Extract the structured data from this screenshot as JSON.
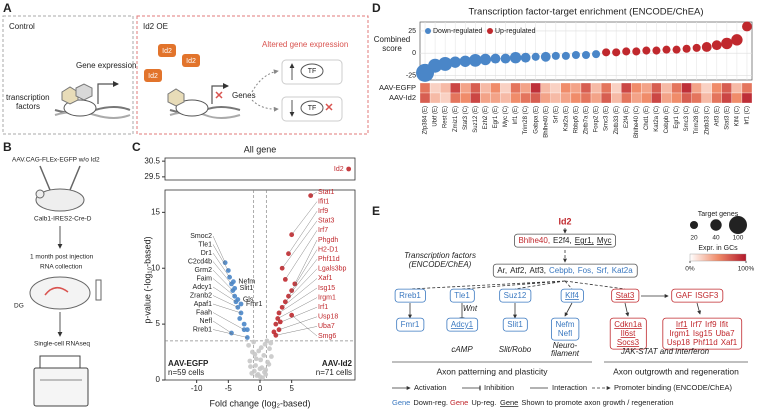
{
  "panel_labels": [
    "A",
    "B",
    "C",
    "D",
    "E"
  ],
  "panel_a": {
    "control": {
      "title": "Control",
      "gene_expression": "Gene expression",
      "tf_label": [
        "transcription",
        "factors"
      ]
    },
    "id2oe": {
      "title": "Id2 OE",
      "id2": "Id2",
      "altered": "Altered gene expression",
      "genes": "Genes",
      "tf": "TF"
    }
  },
  "panel_b": {
    "aav": "AAV.CAG-FLEx-EGFP w/o Id2",
    "mouse_line": "Calb1-IRES2-Cre-D",
    "timing": "1 month post injection",
    "rna": "RNA collection",
    "region": "DG",
    "method": "Single-cell RNAseq"
  },
  "chart_data": [
    {
      "type": "scatter",
      "title": "All gene",
      "x_label": "Fold change (log₂-based)",
      "y_label": "p-value (-log₁₀-based)",
      "xlim": [
        -15,
        15
      ],
      "xticks": [
        -10,
        -5,
        0,
        5
      ],
      "ylim": [
        0,
        17
      ],
      "yticks": [
        0,
        5,
        10,
        15
      ],
      "y_break": {
        "ylim": [
          29.3,
          30.7
        ],
        "yticks": [
          29.5,
          30.5
        ]
      },
      "fc_threshold": 1,
      "p_threshold": 3.5,
      "annotations": {
        "left": "AAV-EGFP",
        "left_n": "n=59 cells",
        "right": "AAV-Id2",
        "right_n": "n=71 cells"
      },
      "series": [
        {
          "color": "#c8c8c8",
          "x": [
            -1.5,
            -1.2,
            -0.9,
            -0.6,
            -0.3,
            0,
            0.3,
            0.6,
            0.9,
            1.2,
            1.5,
            -1.8,
            -1,
            -0.5,
            0.2,
            0.8,
            1.4,
            1.8,
            -1.3,
            -0.7,
            0.1,
            0.7,
            1.1,
            -0.2,
            0.4,
            -1.6,
            1.7,
            -0.8,
            0.9,
            0
          ],
          "values": [
            1.2,
            2.5,
            0.8,
            1.9,
            0.5,
            0.3,
            1.1,
            2.2,
            0.9,
            1.6,
            2.8,
            3.1,
            3.4,
            0.4,
            2.9,
            3.2,
            1.4,
            2.1,
            0.6,
            1.3,
            1.8,
            0.7,
            3.5,
            2.6,
            0.2,
            1.7,
            3.3,
            2.3,
            0.5,
            1.0
          ]
        },
        {
          "color": "#4a86c8",
          "x": [
            -5.5,
            -5,
            -4.8,
            -4.5,
            -4.3,
            -4,
            -3.8,
            -3.5,
            -3,
            -2.5,
            -4.5,
            -2,
            -4.2,
            -4,
            -3.5,
            -3,
            -2.5,
            -3.2,
            -2
          ],
          "values": [
            10.5,
            9.8,
            9.2,
            8.6,
            8,
            7.5,
            7,
            6.5,
            6,
            4.5,
            4.2,
            3.8,
            8.8,
            8.2,
            7.2,
            6.8,
            5,
            5.5,
            4.5
          ],
          "labels": [
            "Smoc2",
            "Tle1",
            "Dr1",
            "C2cd4b",
            "Grm2",
            "Faim",
            "Adcy1",
            "Zranb2",
            "Apaf1",
            "Faah",
            "Nefl",
            "Rreb1",
            "Nefm",
            "Slit1",
            "Gls",
            "Fmr1",
            null,
            null,
            null
          ]
        },
        {
          "color": "#c0282d",
          "x": [
            8,
            5,
            4.5,
            3.5,
            4,
            5.5,
            5,
            4.5,
            4,
            3.5,
            3,
            2.8,
            2.5,
            3,
            2.5,
            5,
            14,
            2.2,
            3.2
          ],
          "values": [
            16.5,
            13,
            11.3,
            10,
            9,
            8.6,
            8,
            7.5,
            7,
            6.5,
            6,
            5.5,
            5,
            4.5,
            4,
            5.8,
            30,
            4.3,
            5.2
          ],
          "labels": [
            "Stat1",
            "Ifit1",
            "Irf9",
            "Stat3",
            "Irf7",
            "Phgdh",
            "H2-D1",
            "Phf11d",
            "Lgals3bp",
            "Xaf1",
            "Isg15",
            "Irgm1",
            "Irf1",
            "Usp18",
            "Uba7",
            "Smg6",
            "Id2",
            null,
            null
          ]
        }
      ]
    },
    {
      "type": "bubble",
      "title": "Transcription factor-target enrichment (ENCODE/ChEA)",
      "y_label": [
        "Combined",
        "score"
      ],
      "ylim": [
        -30,
        35
      ],
      "yticks": [
        -25,
        0,
        25
      ],
      "categories": [
        "Zfp384 (E)",
        "Ubtf (E)",
        "Rest (E)",
        "Zmiz1 (E)",
        "Stat3 (C)",
        "Suz12 (E)",
        "Ezh2 (E)",
        "Egr1 (E)",
        "Myc (C)",
        "Irf1 (E)",
        "Trim28 (C)",
        "Gabpa (E)",
        "Bhlhe40 (E)",
        "Srf (E)",
        "Kat2a (E)",
        "Rbbp5 (E)",
        "Zbtb7a (E)",
        "Foxp2 (E)",
        "Smc3 (E)",
        "Zbtb33 (E)",
        "E2f4 (E)",
        "Bhlhe40 (C)",
        "Chd1 (E)",
        "Kat2a (C)",
        "Cebpb (E)",
        "Egr1 (C)",
        "Smc3 (C)",
        "Trim28 (E)",
        "Zbtb33 (C)",
        "Atf3 (E)",
        "Stat3 (E)",
        "Klf4 (C)",
        "Irf1 (C)"
      ],
      "series": [
        {
          "name": "Down-regulated",
          "color": "#4a86c8",
          "values": [
            -22,
            -14,
            -12,
            -10,
            -9,
            -8,
            -7,
            -6,
            -6,
            -5,
            -5,
            -4,
            -4,
            -3,
            -3,
            -2,
            -2,
            -1,
            null,
            null,
            null,
            null,
            null,
            null,
            null,
            null,
            null,
            null,
            null,
            null,
            null,
            null,
            null
          ],
          "sizes": [
            100,
            60,
            60,
            40,
            40,
            50,
            40,
            30,
            30,
            40,
            30,
            20,
            30,
            20,
            20,
            20,
            20,
            20,
            null,
            null,
            null,
            null,
            null,
            null,
            null,
            null,
            null,
            null,
            null,
            null,
            null,
            null,
            null
          ]
        },
        {
          "name": "Up-regulated",
          "color": "#c0282d",
          "values": [
            null,
            null,
            null,
            null,
            null,
            null,
            null,
            null,
            null,
            null,
            null,
            null,
            null,
            null,
            null,
            null,
            null,
            null,
            1,
            1,
            2,
            2,
            3,
            3,
            4,
            4,
            5,
            6,
            7,
            9,
            11,
            15,
            30
          ],
          "sizes": [
            null,
            null,
            null,
            null,
            null,
            null,
            null,
            null,
            null,
            null,
            null,
            null,
            null,
            null,
            null,
            null,
            null,
            null,
            20,
            20,
            20,
            20,
            20,
            20,
            20,
            20,
            20,
            20,
            30,
            30,
            40,
            40,
            30
          ]
        }
      ],
      "size_legend": {
        "title": "Target genes",
        "values": [
          20,
          40,
          100
        ]
      },
      "heatmap": {
        "rows": [
          "AAV-EGFP",
          "AAV-Id2"
        ],
        "values": [
          [
            60,
            20,
            30,
            80,
            40,
            70,
            30,
            50,
            20,
            60,
            40,
            90,
            30,
            20,
            50,
            40,
            70,
            30,
            60,
            20,
            80,
            50,
            40,
            70,
            30,
            60,
            90,
            40,
            20,
            50,
            70,
            30,
            60
          ],
          [
            70,
            30,
            20,
            60,
            50,
            80,
            40,
            40,
            30,
            50,
            60,
            70,
            40,
            30,
            40,
            50,
            60,
            40,
            70,
            30,
            60,
            40,
            50,
            80,
            40,
            50,
            70,
            60,
            30,
            60,
            80,
            50,
            90
          ]
        ],
        "colorscale": [
          "#ffffff",
          "#f08c6a",
          "#b2182b"
        ],
        "colorbar_title": "Expr. in GCs",
        "colorbar_ticks": [
          {
            "value": 0,
            "label": "0%"
          },
          {
            "value": 100,
            "label": "100%"
          }
        ]
      }
    }
  ],
  "panel_e": {
    "gene_colors": {
      "down": "#3a78c0",
      "up": "#c0282d"
    },
    "id2": "Id2",
    "tf_label": [
      "Transcription factors",
      "(ENCODE/ChEA)"
    ],
    "tf_box": {
      "lines": [
        [
          {
            "text": "Bhlhe40,",
            "reg": "up"
          },
          {
            "text": "E2f4,"
          },
          {
            "text": "Egr1,",
            "promotes": true
          },
          {
            "text": "Myc",
            "promotes": true
          }
        ]
      ]
    },
    "tf_box2": {
      "lines": [
        [
          {
            "text": "Ar,"
          },
          {
            "text": "Atf2,"
          },
          {
            "text": "Atf3,"
          },
          {
            "text": "Cebpb,",
            "reg": "down"
          },
          {
            "text": "Fos,",
            "reg": "down"
          },
          {
            "text": "Srf,",
            "reg": "down"
          },
          {
            "text": "Kat2a",
            "reg": "down"
          }
        ]
      ]
    },
    "row3": [
      {
        "lines": [
          [
            {
              "text": "Rreb1",
              "reg": "down"
            }
          ]
        ]
      },
      {
        "lines": [
          [
            {
              "text": "Tle1",
              "reg": "down"
            }
          ]
        ]
      },
      {
        "lines": [
          [
            {
              "text": "Suz12",
              "reg": "down"
            }
          ]
        ]
      },
      {
        "lines": [
          [
            {
              "text": "Klf4",
              "reg": "down",
              "promotes": true
            }
          ]
        ]
      },
      {
        "lines": [
          [
            {
              "text": "Stat3",
              "reg": "up",
              "promotes": true
            }
          ]
        ]
      },
      {
        "lines": [
          [
            {
              "text": "GAF",
              "reg": "up"
            },
            {
              "text": "ISGF3",
              "reg": "up"
            }
          ]
        ]
      }
    ],
    "row4": [
      {
        "lines": [
          [
            {
              "text": "Fmr1",
              "reg": "down"
            }
          ]
        ]
      },
      {
        "lines": [
          [
            {
              "text": "Adcy1",
              "reg": "down",
              "promotes": true
            }
          ]
        ]
      },
      {
        "lines": [
          [
            {
              "text": "Slit1",
              "reg": "down"
            }
          ]
        ]
      },
      {
        "lines": [
          [
            {
              "text": "Nefm",
              "reg": "down"
            }
          ],
          [
            {
              "text": "Nefl",
              "reg": "down"
            }
          ]
        ]
      },
      {
        "lines": [
          [
            {
              "text": "Cdkn1a",
              "reg": "up",
              "promotes": true
            }
          ],
          [
            {
              "text": "Il6st",
              "reg": "up",
              "promotes": true
            }
          ],
          [
            {
              "text": "Socs3",
              "reg": "up",
              "promotes": true
            }
          ]
        ]
      },
      {
        "lines": [
          [
            {
              "text": "Irf1",
              "reg": "up",
              "promotes": true
            },
            {
              "text": "Irf7",
              "reg": "up"
            },
            {
              "text": "Irf9",
              "reg": "up"
            },
            {
              "text": "Ifit",
              "reg": "up"
            }
          ],
          [
            {
              "text": "Irgm1",
              "reg": "up"
            },
            {
              "text": "Isg15",
              "reg": "up"
            },
            {
              "text": "Uba7",
              "reg": "up"
            }
          ],
          [
            {
              "text": "Usp18",
              "reg": "up"
            },
            {
              "text": "Phf11d",
              "reg": "up"
            },
            {
              "text": "Xaf1",
              "reg": "up"
            }
          ]
        ]
      }
    ],
    "pathways": {
      "wnt": "Wnt",
      "camp": "cAMP",
      "slit": "Slit/Robo",
      "neuro": [
        "Neuro-",
        "filament"
      ],
      "jak": "JAK-STAT and interferon"
    },
    "groups": [
      "Axon patterning and plasticity",
      "Axon outgrowth and regeneration"
    ],
    "legend_lines": [
      "Activation",
      "Inhibition",
      "Interaction",
      "Promoter binding (ENCODE/ChEA)"
    ],
    "legend_genes": [
      {
        "sample": "Gene",
        "label": "Down-reg.",
        "reg": "down"
      },
      {
        "sample": "Gene",
        "label": "Up-reg.",
        "reg": "up"
      },
      {
        "sample": "Gene",
        "label": "Shown to promote axon growth / regeneration",
        "promotes": true
      }
    ]
  }
}
